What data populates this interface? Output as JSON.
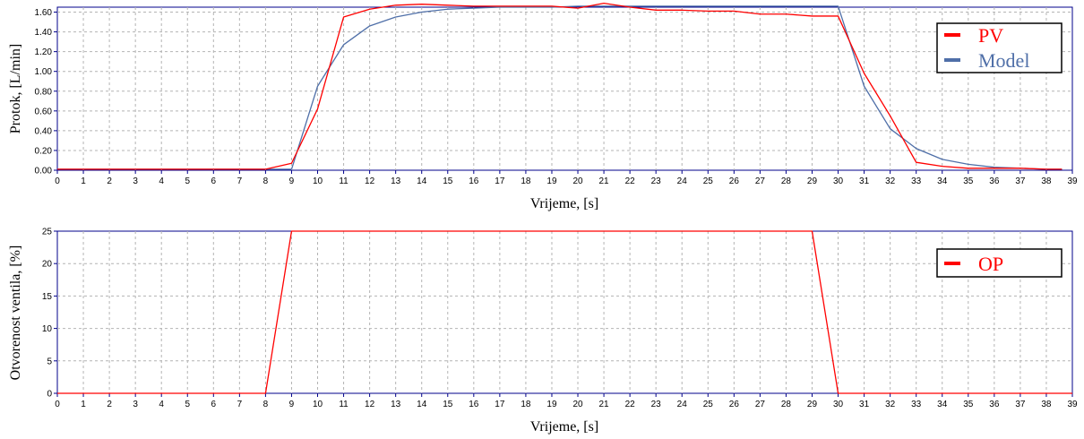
{
  "chart_data": [
    {
      "type": "line",
      "xlabel": "Vrijeme, [s]",
      "ylabel": "Protok, [L/min]",
      "xlim": [
        0,
        39
      ],
      "ylim": [
        0,
        1.65
      ],
      "xticks": [
        "0",
        "1",
        "2",
        "3",
        "4",
        "5",
        "6",
        "7",
        "8",
        "9",
        "10",
        "11",
        "12",
        "13",
        "14",
        "15",
        "16",
        "17",
        "18",
        "19",
        "20",
        "21",
        "22",
        "23",
        "24",
        "25",
        "26",
        "27",
        "28",
        "29",
        "30",
        "31",
        "32",
        "33",
        "34",
        "35",
        "36",
        "37",
        "38",
        "39"
      ],
      "yticks": [
        "0.00",
        "0.20",
        "0.40",
        "0.60",
        "0.80",
        "1.00",
        "1.20",
        "1.40",
        "1.60"
      ],
      "grid": true,
      "legend_position": "top-right",
      "series": [
        {
          "name": "PV",
          "color": "#ff0000",
          "x": [
            0,
            1,
            2,
            3,
            4,
            5,
            6,
            7,
            8,
            9,
            10,
            11,
            12,
            13,
            14,
            15,
            16,
            17,
            18,
            19,
            20,
            21,
            22,
            23,
            24,
            25,
            26,
            27,
            28,
            29,
            30,
            31,
            32,
            33,
            34,
            35,
            36,
            37,
            38,
            38.6
          ],
          "y": [
            0.01,
            0.01,
            0.01,
            0.01,
            0.01,
            0.01,
            0.01,
            0.01,
            0.01,
            0.07,
            0.62,
            1.55,
            1.63,
            1.67,
            1.68,
            1.67,
            1.66,
            1.66,
            1.66,
            1.66,
            1.64,
            1.69,
            1.65,
            1.62,
            1.62,
            1.61,
            1.61,
            1.58,
            1.58,
            1.56,
            1.56,
            0.98,
            0.55,
            0.08,
            0.04,
            0.02,
            0.02,
            0.02,
            0.01,
            0.01
          ]
        },
        {
          "name": "Model",
          "color": "#4f6fa8",
          "x": [
            0,
            1,
            2,
            3,
            4,
            5,
            6,
            7,
            8,
            9,
            10,
            11,
            12,
            13,
            14,
            15,
            16,
            17,
            18,
            19,
            20,
            21,
            22,
            23,
            24,
            25,
            26,
            27,
            28,
            29,
            30,
            31,
            32,
            33,
            34,
            35,
            36,
            37,
            38,
            38.6
          ],
          "y": [
            0.01,
            0.01,
            0.01,
            0.01,
            0.01,
            0.01,
            0.01,
            0.01,
            0.01,
            0.01,
            0.85,
            1.27,
            1.46,
            1.55,
            1.6,
            1.63,
            1.64,
            1.65,
            1.65,
            1.65,
            1.66,
            1.66,
            1.66,
            1.66,
            1.66,
            1.66,
            1.66,
            1.66,
            1.66,
            1.66,
            1.66,
            0.85,
            0.42,
            0.22,
            0.11,
            0.06,
            0.03,
            0.02,
            0.01,
            0.01
          ]
        }
      ]
    },
    {
      "type": "line",
      "xlabel": "Vrijeme, [s]",
      "ylabel": "Otvorenost ventila, [%]",
      "xlim": [
        0,
        39
      ],
      "ylim": [
        0,
        25
      ],
      "xticks": [
        "0",
        "1",
        "2",
        "3",
        "4",
        "5",
        "6",
        "7",
        "8",
        "9",
        "10",
        "11",
        "12",
        "13",
        "14",
        "15",
        "16",
        "17",
        "18",
        "19",
        "20",
        "21",
        "22",
        "23",
        "24",
        "25",
        "26",
        "27",
        "28",
        "29",
        "30",
        "31",
        "32",
        "33",
        "34",
        "35",
        "36",
        "37",
        "38",
        "39"
      ],
      "yticks": [
        "0",
        "5",
        "10",
        "15",
        "20",
        "25"
      ],
      "grid": true,
      "legend_position": "top-right",
      "series": [
        {
          "name": "OP",
          "color": "#ff0000",
          "x": [
            0,
            8,
            9,
            29,
            30,
            39
          ],
          "y": [
            0,
            0,
            25,
            25,
            0,
            0
          ]
        }
      ]
    }
  ]
}
